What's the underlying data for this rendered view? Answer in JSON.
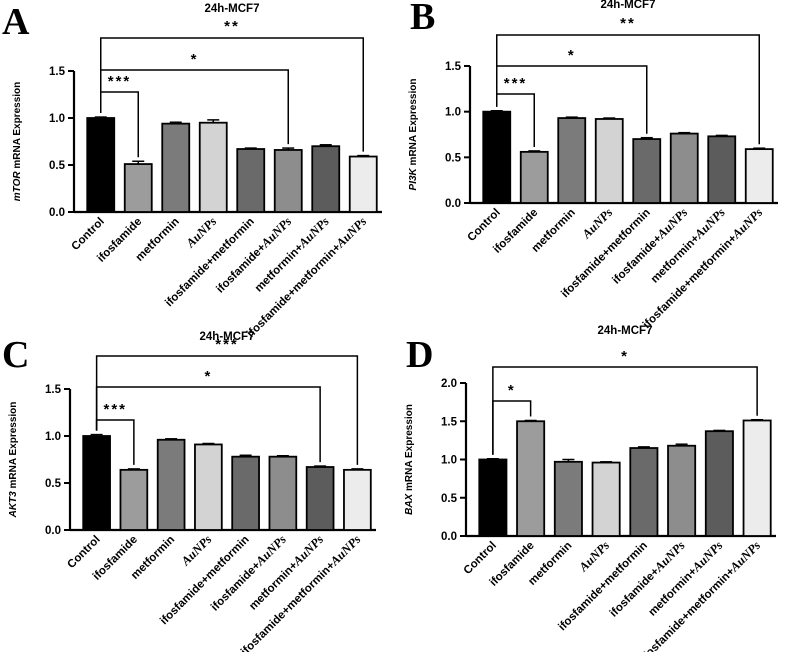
{
  "chart_data": [
    {
      "type": "bar",
      "panel": "A",
      "title": "24h-MCF7",
      "ylabel_gene": "mTOR",
      "ylabel_rest": "mRNA Expression",
      "ylim": [
        0,
        1.5
      ],
      "yticks": [
        "0.0",
        "0.5",
        "1.0",
        "1.5"
      ],
      "categories": [
        [
          {
            "t": "Control"
          }
        ],
        [
          {
            "t": "ifosfamide"
          }
        ],
        [
          {
            "t": "metformin"
          }
        ],
        [
          {
            "t": "AuNPs",
            "i": true
          }
        ],
        [
          {
            "t": "ifosfamide+metformin"
          }
        ],
        [
          {
            "t": "ifosfamide+"
          },
          {
            "t": "AuNPs",
            "i": true
          }
        ],
        [
          {
            "t": "metformin+"
          },
          {
            "t": "AuNPs",
            "i": true
          }
        ],
        [
          {
            "t": "ifosfamide+metformin+"
          },
          {
            "t": "AuNPs",
            "i": true
          }
        ]
      ],
      "values": [
        1.0,
        0.51,
        0.94,
        0.95,
        0.67,
        0.66,
        0.7,
        0.59
      ],
      "errors": [
        0.01,
        0.03,
        0.015,
        0.03,
        0.01,
        0.02,
        0.015,
        0.01
      ],
      "colors": [
        "#000000",
        "#9c9c9c",
        "#7b7b7b",
        "#d3d3d3",
        "#6a6a6a",
        "#8d8d8d",
        "#5c5c5c",
        "#ececec"
      ],
      "significance": [
        {
          "from": 0,
          "to": 1,
          "label": "***"
        },
        {
          "from": 0,
          "to": 5,
          "label": "*"
        },
        {
          "from": 0,
          "to": 7,
          "label": "**"
        }
      ]
    },
    {
      "type": "bar",
      "panel": "B",
      "title": "24h-MCF7",
      "ylabel_gene": "PI3K",
      "ylabel_rest": "mRNA Expression",
      "ylim": [
        0,
        1.5
      ],
      "yticks": [
        "0.0",
        "0.5",
        "1.0",
        "1.5"
      ],
      "categories": [
        [
          {
            "t": "Control"
          }
        ],
        [
          {
            "t": "ifosfamide"
          }
        ],
        [
          {
            "t": "metformin"
          }
        ],
        [
          {
            "t": "AuNPs",
            "i": true
          }
        ],
        [
          {
            "t": "ifosfamide+metformin"
          }
        ],
        [
          {
            "t": "ifosfamide+"
          },
          {
            "t": "AuNPs",
            "i": true
          }
        ],
        [
          {
            "t": "metformin+"
          },
          {
            "t": "AuNPs",
            "i": true
          }
        ],
        [
          {
            "t": "ifosfamide+metformin+"
          },
          {
            "t": "AuNPs",
            "i": true
          }
        ]
      ],
      "values": [
        1.0,
        0.56,
        0.93,
        0.92,
        0.7,
        0.76,
        0.73,
        0.59
      ],
      "errors": [
        0.01,
        0.01,
        0.01,
        0.01,
        0.015,
        0.01,
        0.01,
        0.01
      ],
      "colors": [
        "#000000",
        "#9c9c9c",
        "#7b7b7b",
        "#d3d3d3",
        "#6a6a6a",
        "#8d8d8d",
        "#5c5c5c",
        "#ececec"
      ],
      "significance": [
        {
          "from": 0,
          "to": 1,
          "label": "***"
        },
        {
          "from": 0,
          "to": 4,
          "label": "*"
        },
        {
          "from": 0,
          "to": 7,
          "label": "**"
        }
      ]
    },
    {
      "type": "bar",
      "panel": "C",
      "title": "24h-MCF7",
      "ylabel_gene": "AKT3",
      "ylabel_rest": "mRNA Expression",
      "ylim": [
        0,
        1.5
      ],
      "yticks": [
        "0.0",
        "0.5",
        "1.0",
        "1.5"
      ],
      "categories": [
        [
          {
            "t": "Control"
          }
        ],
        [
          {
            "t": "ifosfamide"
          }
        ],
        [
          {
            "t": "metformin"
          }
        ],
        [
          {
            "t": "AuNPs",
            "i": true
          }
        ],
        [
          {
            "t": "ifosfamide+metformin"
          }
        ],
        [
          {
            "t": "ifosfamide+"
          },
          {
            "t": "AuNPs",
            "i": true
          }
        ],
        [
          {
            "t": "metformin+"
          },
          {
            "t": "AuNPs",
            "i": true
          }
        ],
        [
          {
            "t": "ifosfamide+metformin+"
          },
          {
            "t": "AuNPs",
            "i": true
          }
        ]
      ],
      "values": [
        1.0,
        0.64,
        0.96,
        0.91,
        0.78,
        0.78,
        0.67,
        0.64
      ],
      "errors": [
        0.015,
        0.01,
        0.01,
        0.01,
        0.015,
        0.01,
        0.01,
        0.01
      ],
      "colors": [
        "#000000",
        "#9c9c9c",
        "#7b7b7b",
        "#d3d3d3",
        "#6a6a6a",
        "#8d8d8d",
        "#5c5c5c",
        "#ececec"
      ],
      "significance": [
        {
          "from": 0,
          "to": 1,
          "label": "***"
        },
        {
          "from": 0,
          "to": 6,
          "label": "*"
        },
        {
          "from": 0,
          "to": 7,
          "label": "***"
        }
      ]
    },
    {
      "type": "bar",
      "panel": "D",
      "title": "24h-MCF7",
      "ylabel_gene": "BAX",
      "ylabel_rest": "mRNA Expression",
      "ylim": [
        0,
        2.0
      ],
      "yticks": [
        "0.0",
        "0.5",
        "1.0",
        "1.5",
        "2.0"
      ],
      "categories": [
        [
          {
            "t": "Control"
          }
        ],
        [
          {
            "t": "ifosfamide"
          }
        ],
        [
          {
            "t": "metformin"
          }
        ],
        [
          {
            "t": "AuNPs",
            "i": true
          }
        ],
        [
          {
            "t": "ifosfamide+metformin"
          }
        ],
        [
          {
            "t": "ifosfamide+"
          },
          {
            "t": "AuNPs",
            "i": true
          }
        ],
        [
          {
            "t": "metformin+"
          },
          {
            "t": "AuNPs",
            "i": true
          }
        ],
        [
          {
            "t": "ifosfamide+metformin+"
          },
          {
            "t": "AuNPs",
            "i": true
          }
        ]
      ],
      "values": [
        1.0,
        1.5,
        0.97,
        0.96,
        1.15,
        1.18,
        1.37,
        1.51
      ],
      "errors": [
        0.01,
        0.01,
        0.03,
        0.01,
        0.015,
        0.02,
        0.01,
        0.01
      ],
      "colors": [
        "#000000",
        "#9c9c9c",
        "#7b7b7b",
        "#d3d3d3",
        "#6a6a6a",
        "#8d8d8d",
        "#5c5c5c",
        "#ececec"
      ],
      "significance": [
        {
          "from": 0,
          "to": 1,
          "label": "*"
        },
        {
          "from": 0,
          "to": 7,
          "label": "*"
        }
      ]
    }
  ]
}
